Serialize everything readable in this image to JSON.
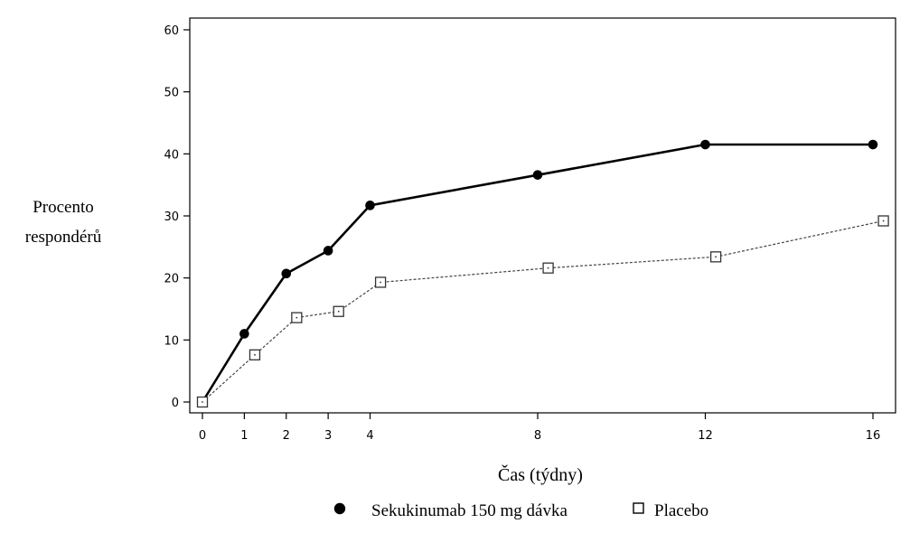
{
  "chart_data": {
    "type": "line",
    "title": "",
    "xlabel": "Čas (týdny)",
    "ylabel_lines": [
      "Procento",
      "respondérů"
    ],
    "xlim": [
      0,
      16
    ],
    "ylim": [
      0,
      60
    ],
    "x_ticks": [
      0,
      1,
      2,
      3,
      4,
      8,
      12,
      16
    ],
    "y_ticks": [
      0,
      10,
      20,
      30,
      40,
      50,
      60
    ],
    "grid": false,
    "legend_position": "bottom",
    "series": [
      {
        "name": "Sekukinumab 150 mg dávka",
        "marker": "filled-circle",
        "line_style": "solid",
        "color": "#000000",
        "points": [
          {
            "x": 0,
            "y": 0
          },
          {
            "x": 1,
            "y": 11
          },
          {
            "x": 2,
            "y": 20.7
          },
          {
            "x": 3,
            "y": 24.4
          },
          {
            "x": 4,
            "y": 31.7
          },
          {
            "x": 8,
            "y": 36.6
          },
          {
            "x": 12,
            "y": 41.5
          },
          {
            "x": 16,
            "y": 41.5
          }
        ]
      },
      {
        "name": "Placebo",
        "marker": "open-square",
        "line_style": "dashed",
        "color": "#444444",
        "points": [
          {
            "x": 0,
            "y": 0
          },
          {
            "x": 1.25,
            "y": 7.6
          },
          {
            "x": 2.25,
            "y": 13.6
          },
          {
            "x": 3.25,
            "y": 14.6
          },
          {
            "x": 4.25,
            "y": 19.3
          },
          {
            "x": 8.25,
            "y": 21.6
          },
          {
            "x": 12.25,
            "y": 23.4
          },
          {
            "x": 16.25,
            "y": 29.2
          }
        ]
      }
    ]
  }
}
